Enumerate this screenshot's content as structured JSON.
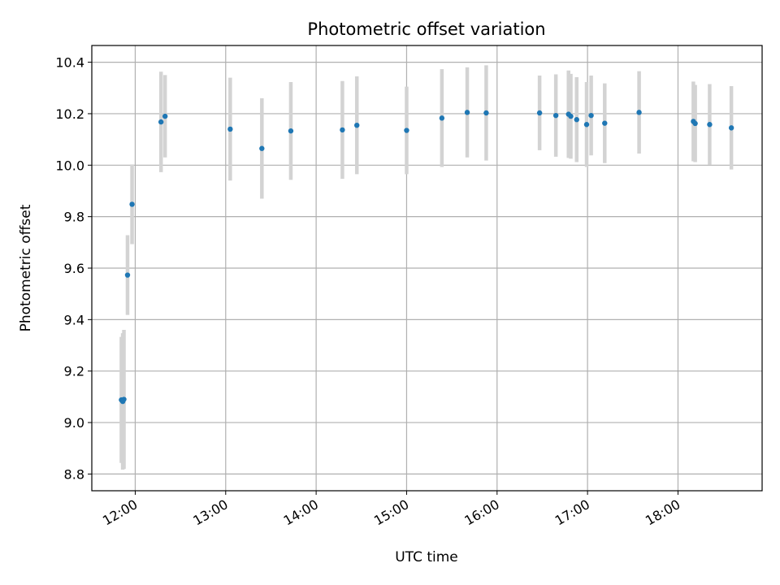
{
  "chart_data": {
    "type": "scatter",
    "title": "Photometric offset variation",
    "xlabel": "UTC time",
    "ylabel": "Photometric offset",
    "x_unit": "hours UTC",
    "xlim": [
      11.52,
      18.93
    ],
    "ylim": [
      8.735,
      10.465
    ],
    "x_ticks": [
      {
        "value": 12,
        "label": "12:00"
      },
      {
        "value": 13,
        "label": "13:00"
      },
      {
        "value": 14,
        "label": "14:00"
      },
      {
        "value": 15,
        "label": "15:00"
      },
      {
        "value": 16,
        "label": "16:00"
      },
      {
        "value": 17,
        "label": "17:00"
      },
      {
        "value": 18,
        "label": "18:00"
      }
    ],
    "y_ticks": [
      {
        "value": 8.8,
        "label": "8.8"
      },
      {
        "value": 9.0,
        "label": "9.0"
      },
      {
        "value": 9.2,
        "label": "9.2"
      },
      {
        "value": 9.4,
        "label": "9.4"
      },
      {
        "value": 9.6,
        "label": "9.6"
      },
      {
        "value": 9.8,
        "label": "9.8"
      },
      {
        "value": 10.0,
        "label": "10.0"
      },
      {
        "value": 10.2,
        "label": "10.2"
      },
      {
        "value": 10.4,
        "label": "10.4"
      }
    ],
    "grid": true,
    "series": [
      {
        "points": [
          {
            "x": 11.847,
            "y": 9.088,
            "err": 0.245
          },
          {
            "x": 11.862,
            "y": 9.082,
            "err": 0.265
          },
          {
            "x": 11.875,
            "y": 9.09,
            "err": 0.27
          },
          {
            "x": 11.915,
            "y": 9.573,
            "err": 0.155
          },
          {
            "x": 11.965,
            "y": 9.848,
            "err": 0.155
          },
          {
            "x": 12.285,
            "y": 10.168,
            "err": 0.195
          },
          {
            "x": 12.33,
            "y": 10.19,
            "err": 0.16
          },
          {
            "x": 13.05,
            "y": 10.14,
            "err": 0.2
          },
          {
            "x": 13.4,
            "y": 10.065,
            "err": 0.195
          },
          {
            "x": 13.72,
            "y": 10.133,
            "err": 0.19
          },
          {
            "x": 14.29,
            "y": 10.137,
            "err": 0.19
          },
          {
            "x": 14.45,
            "y": 10.155,
            "err": 0.19
          },
          {
            "x": 15.0,
            "y": 10.135,
            "err": 0.17
          },
          {
            "x": 15.39,
            "y": 10.183,
            "err": 0.19
          },
          {
            "x": 15.67,
            "y": 10.205,
            "err": 0.175
          },
          {
            "x": 15.88,
            "y": 10.203,
            "err": 0.185
          },
          {
            "x": 16.47,
            "y": 10.203,
            "err": 0.145
          },
          {
            "x": 16.65,
            "y": 10.193,
            "err": 0.16
          },
          {
            "x": 16.79,
            "y": 10.198,
            "err": 0.17
          },
          {
            "x": 16.815,
            "y": 10.19,
            "err": 0.165
          },
          {
            "x": 16.88,
            "y": 10.177,
            "err": 0.165
          },
          {
            "x": 16.99,
            "y": 10.158,
            "err": 0.165
          },
          {
            "x": 17.04,
            "y": 10.193,
            "err": 0.155
          },
          {
            "x": 17.19,
            "y": 10.163,
            "err": 0.155
          },
          {
            "x": 17.57,
            "y": 10.205,
            "err": 0.16
          },
          {
            "x": 18.17,
            "y": 10.17,
            "err": 0.155
          },
          {
            "x": 18.19,
            "y": 10.162,
            "err": 0.15
          },
          {
            "x": 18.35,
            "y": 10.158,
            "err": 0.157
          },
          {
            "x": 18.59,
            "y": 10.145,
            "err": 0.162
          }
        ]
      }
    ],
    "colors": {
      "point": "#1f77b4",
      "errorbar": "#d3d3d3",
      "grid": "#b0b0b0"
    }
  }
}
